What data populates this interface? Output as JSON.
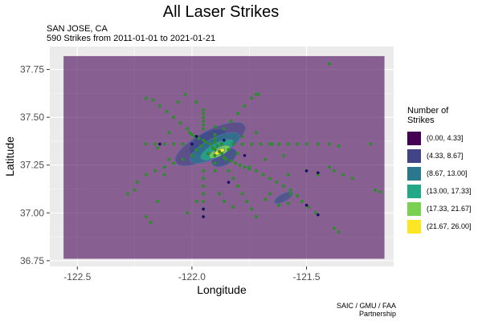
{
  "chart_data": {
    "type": "scatter",
    "title": "All Laser Strikes",
    "subtitle_line1": "SAN JOSE, CA",
    "subtitle_line2": "590 Strikes from 2011-01-01 to 2021-01-21",
    "xlabel": "Longitude",
    "ylabel": "Latitude",
    "xlim": [
      -122.62,
      -121.12
    ],
    "ylim": [
      36.72,
      37.87
    ],
    "x_ticks": [
      {
        "value": -122.5,
        "label": "-122.5"
      },
      {
        "value": -122.0,
        "label": "-122.0"
      },
      {
        "value": -121.5,
        "label": "-121.5"
      }
    ],
    "y_ticks": [
      {
        "value": 36.75,
        "label": "36.75"
      },
      {
        "value": 37.0,
        "label": "37.00"
      },
      {
        "value": 37.25,
        "label": "37.25"
      },
      {
        "value": 37.5,
        "label": "37.50"
      },
      {
        "value": 37.75,
        "label": "37.75"
      }
    ],
    "grid": true,
    "panel_background": "#ebebeb",
    "map_region": {
      "xmin": -122.56,
      "xmax": -121.16,
      "ymin": 36.76,
      "ymax": 37.82,
      "color": "#440154",
      "opacity": 0.6
    },
    "legend": {
      "title": "Number of\nStrikes",
      "position": "right",
      "entries": [
        {
          "label": "(0.00, 4.33]",
          "color": "#440154"
        },
        {
          "label": "(4.33, 8.67]",
          "color": "#414487"
        },
        {
          "label": "(8.67, 13.00]",
          "color": "#2a788e"
        },
        {
          "label": "(13.00, 17.33]",
          "color": "#22a884"
        },
        {
          "label": "(17.33, 21.67]",
          "color": "#7ad151"
        },
        {
          "label": "(21.67, 26.00]",
          "color": "#fde725"
        }
      ]
    },
    "point_color": "#2e8b2e",
    "dark_point_color": "#1a0a6b",
    "points": [
      [
        -121.9,
        37.33
      ],
      [
        -121.91,
        37.34
      ],
      [
        -121.89,
        37.35
      ],
      [
        -121.88,
        37.32
      ],
      [
        -121.92,
        37.36
      ],
      [
        -121.87,
        37.31
      ],
      [
        -121.9,
        37.3
      ],
      [
        -121.94,
        37.37
      ],
      [
        -121.86,
        37.29
      ],
      [
        -121.85,
        37.28
      ],
      [
        -121.95,
        37.38
      ],
      [
        -121.83,
        37.27
      ],
      [
        -121.97,
        37.39
      ],
      [
        -121.81,
        37.26
      ],
      [
        -121.99,
        37.4
      ],
      [
        -121.79,
        37.25
      ],
      [
        -122.0,
        37.41
      ],
      [
        -121.77,
        37.24
      ],
      [
        -122.01,
        37.42
      ],
      [
        -121.75,
        37.23
      ],
      [
        -121.96,
        37.35
      ],
      [
        -121.93,
        37.31
      ],
      [
        -121.87,
        37.36
      ],
      [
        -121.84,
        37.33
      ],
      [
        -121.98,
        37.33
      ],
      [
        -121.8,
        37.31
      ],
      [
        -121.9,
        37.45
      ],
      [
        -121.9,
        37.41
      ],
      [
        -121.9,
        37.39
      ],
      [
        -121.9,
        37.37
      ],
      [
        -121.9,
        37.26
      ],
      [
        -121.9,
        37.22
      ],
      [
        -121.82,
        37.36
      ],
      [
        -121.78,
        37.36
      ],
      [
        -121.74,
        37.36
      ],
      [
        -121.7,
        37.36
      ],
      [
        -121.66,
        37.36
      ],
      [
        -121.62,
        37.36
      ],
      [
        -121.58,
        37.36
      ],
      [
        -121.54,
        37.36
      ],
      [
        -121.5,
        37.36
      ],
      [
        -122.04,
        37.36
      ],
      [
        -122.08,
        37.36
      ],
      [
        -122.12,
        37.36
      ],
      [
        -122.16,
        37.36
      ],
      [
        -122.2,
        37.36
      ],
      [
        -121.95,
        37.54
      ],
      [
        -121.95,
        37.52
      ],
      [
        -121.95,
        37.5
      ],
      [
        -121.95,
        37.48
      ],
      [
        -121.95,
        37.46
      ],
      [
        -121.95,
        37.44
      ],
      [
        -121.95,
        37.22
      ],
      [
        -121.95,
        37.18
      ],
      [
        -121.95,
        37.14
      ],
      [
        -121.95,
        37.1
      ],
      [
        -121.95,
        37.06
      ],
      [
        -121.95,
        37.02
      ],
      [
        -121.95,
        36.98
      ],
      [
        -121.75,
        37.24
      ],
      [
        -121.72,
        37.22
      ],
      [
        -121.69,
        37.2
      ],
      [
        -121.66,
        37.18
      ],
      [
        -121.63,
        37.16
      ],
      [
        -121.6,
        37.14
      ],
      [
        -121.57,
        37.12
      ],
      [
        -121.57,
        37.1
      ],
      [
        -121.54,
        37.09
      ],
      [
        -121.52,
        37.06
      ],
      [
        -121.49,
        37.03
      ],
      [
        -121.46,
        37.0
      ],
      [
        -122.0,
        37.3
      ],
      [
        -122.04,
        37.28
      ],
      [
        -122.08,
        37.26
      ],
      [
        -122.12,
        37.24
      ],
      [
        -122.16,
        37.22
      ],
      [
        -122.2,
        37.2
      ],
      [
        -122.24,
        37.16
      ],
      [
        -121.84,
        37.22
      ],
      [
        -121.82,
        37.18
      ],
      [
        -121.8,
        37.14
      ],
      [
        -121.78,
        37.1
      ],
      [
        -121.76,
        37.06
      ],
      [
        -121.74,
        37.02
      ],
      [
        -121.72,
        36.98
      ],
      [
        -122.02,
        37.44
      ],
      [
        -122.05,
        37.47
      ],
      [
        -122.08,
        37.5
      ],
      [
        -122.11,
        37.53
      ],
      [
        -122.14,
        37.56
      ],
      [
        -122.17,
        37.59
      ],
      [
        -122.2,
        37.6
      ],
      [
        -121.86,
        37.44
      ],
      [
        -121.83,
        37.48
      ],
      [
        -121.8,
        37.52
      ],
      [
        -121.77,
        37.56
      ],
      [
        -121.74,
        37.6
      ],
      [
        -121.71,
        37.62
      ],
      [
        -121.4,
        37.78
      ],
      [
        -121.72,
        37.62
      ],
      [
        -121.65,
        37.36
      ],
      [
        -121.45,
        37.36
      ],
      [
        -121.4,
        37.36
      ],
      [
        -121.36,
        37.35
      ],
      [
        -121.2,
        37.12
      ],
      [
        -121.18,
        37.11
      ],
      [
        -121.22,
        37.36
      ],
      [
        -121.38,
        36.92
      ],
      [
        -121.36,
        36.9
      ],
      [
        -121.4,
        37.24
      ],
      [
        -122.28,
        37.1
      ],
      [
        -122.25,
        37.12
      ],
      [
        -122.2,
        36.98
      ],
      [
        -122.18,
        36.95
      ],
      [
        -122.15,
        37.06
      ],
      [
        -121.5,
        37.22
      ],
      [
        -121.45,
        37.2
      ],
      [
        -121.38,
        37.22
      ],
      [
        -121.34,
        37.2
      ],
      [
        -121.3,
        37.18
      ],
      [
        -121.68,
        37.07
      ],
      [
        -121.62,
        37.04
      ],
      [
        -121.58,
        37.05
      ],
      [
        -121.66,
        37.1
      ],
      [
        -122.06,
        37.58
      ],
      [
        -122.03,
        37.62
      ],
      [
        -121.98,
        37.58
      ],
      [
        -122.1,
        37.42
      ],
      [
        -122.15,
        37.34
      ],
      [
        -122.12,
        37.2
      ],
      [
        -121.88,
        37.1
      ],
      [
        -121.86,
        37.06
      ],
      [
        -121.82,
        37.03
      ],
      [
        -121.98,
        37.06
      ],
      [
        -122.02,
        37.0
      ],
      [
        -122.1,
        37.28
      ],
      [
        -121.78,
        37.4
      ],
      [
        -121.72,
        37.42
      ],
      [
        -121.68,
        37.28
      ],
      [
        -121.6,
        37.3
      ],
      [
        -121.58,
        37.2
      ]
    ],
    "dark_points": [
      [
        -122.14,
        37.36
      ],
      [
        -121.84,
        37.16
      ],
      [
        -121.77,
        37.3
      ],
      [
        -121.5,
        37.22
      ],
      [
        -121.45,
        37.21
      ],
      [
        -121.5,
        37.04
      ],
      [
        -121.45,
        36.99
      ],
      [
        -121.95,
        37.02
      ],
      [
        -121.95,
        36.98
      ],
      [
        -121.98,
        37.4
      ],
      [
        -122.0,
        37.36
      ],
      [
        -121.86,
        37.38
      ]
    ],
    "density_contours": [
      {
        "cx": -121.93,
        "cy": 37.37,
        "rx": 0.09,
        "ry": 0.05,
        "rot": -28,
        "color": "#3b528b",
        "opacity": 0.8
      },
      {
        "cx": -121.86,
        "cy": 37.29,
        "rx": 0.06,
        "ry": 0.04,
        "rot": -28,
        "color": "#3b528b",
        "opacity": 0.8
      },
      {
        "cx": -121.92,
        "cy": 37.36,
        "rx": 0.17,
        "ry": 0.07,
        "rot": -28,
        "color": "#414487",
        "opacity": 0.6
      },
      {
        "cx": -121.9,
        "cy": 37.34,
        "rx": 0.12,
        "ry": 0.05,
        "rot": -28,
        "color": "#2a788e",
        "opacity": 0.75
      },
      {
        "cx": -121.89,
        "cy": 37.33,
        "rx": 0.08,
        "ry": 0.035,
        "rot": -28,
        "color": "#22a884",
        "opacity": 0.85
      },
      {
        "cx": -121.88,
        "cy": 37.32,
        "rx": 0.05,
        "ry": 0.022,
        "rot": -28,
        "color": "#7ad151",
        "opacity": 0.9
      },
      {
        "cx": -121.88,
        "cy": 37.32,
        "rx": 0.025,
        "ry": 0.012,
        "rot": -28,
        "color": "#fde725",
        "opacity": 1.0
      },
      {
        "cx": -121.6,
        "cy": 37.08,
        "rx": 0.045,
        "ry": 0.02,
        "rot": -28,
        "color": "#3b528b",
        "opacity": 0.7
      }
    ]
  },
  "caption_line1": "SAIC / GMU / FAA",
  "caption_line2": "Partnership"
}
